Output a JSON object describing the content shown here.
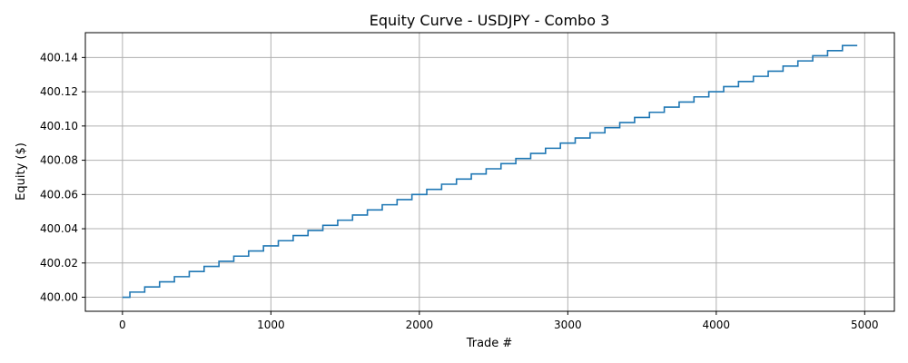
{
  "chart_data": {
    "type": "line",
    "title": "Equity Curve - USDJPY - Combo 3",
    "xlabel": "Trade #",
    "ylabel": "Equity ($)",
    "xlim": [
      -250,
      5200
    ],
    "ylim": [
      399.9918,
      400.1545
    ],
    "x_ticks": [
      0,
      1000,
      2000,
      3000,
      4000,
      5000
    ],
    "x_tick_labels": [
      "0",
      "1000",
      "2000",
      "3000",
      "4000",
      "5000"
    ],
    "y_ticks": [
      400.0,
      400.02,
      400.04,
      400.06,
      400.08,
      400.1,
      400.12,
      400.14
    ],
    "y_tick_labels": [
      "400.00",
      "400.02",
      "400.04",
      "400.06",
      "400.08",
      "400.10",
      "400.12",
      "400.14"
    ],
    "grid": true,
    "line_color": "#1f77b4",
    "series": [
      {
        "steps": {
          "x_start": 0,
          "x_end": 4950,
          "first_step_x": 50,
          "step_interval": 100,
          "y_start": 400.0,
          "y_step": 0.003,
          "num_steps": 49
        }
      }
    ]
  }
}
